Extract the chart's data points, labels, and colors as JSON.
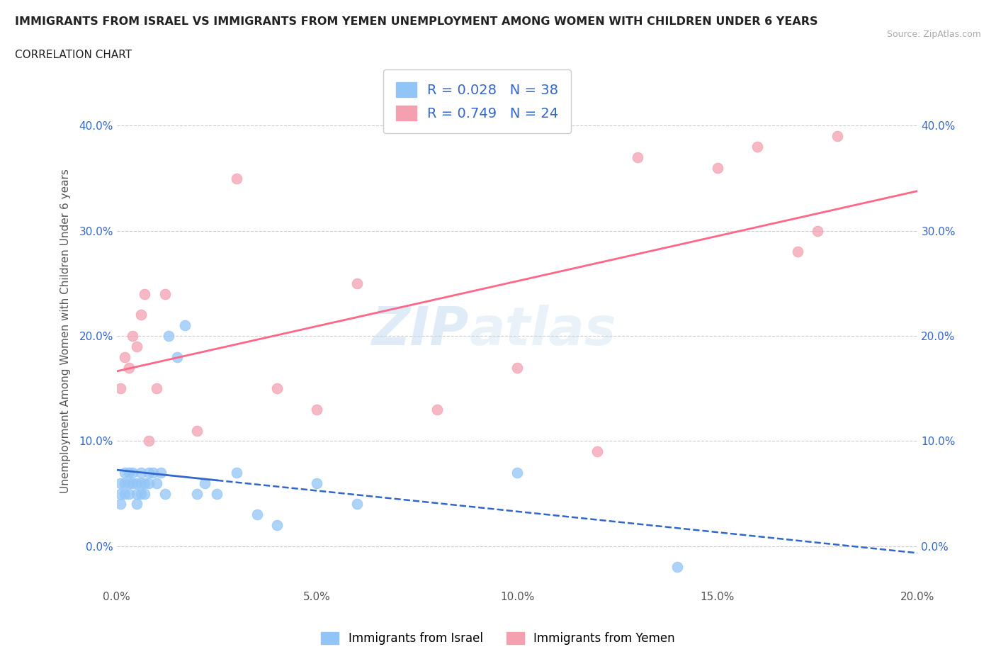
{
  "title": "IMMIGRANTS FROM ISRAEL VS IMMIGRANTS FROM YEMEN UNEMPLOYMENT AMONG WOMEN WITH CHILDREN UNDER 6 YEARS",
  "subtitle": "CORRELATION CHART",
  "source": "Source: ZipAtlas.com",
  "ylabel": "Unemployment Among Women with Children Under 6 years",
  "legend_bottom": [
    "Immigrants from Israel",
    "Immigrants from Yemen"
  ],
  "r_israel": 0.028,
  "n_israel": 38,
  "r_yemen": 0.749,
  "n_yemen": 24,
  "israel_color": "#92C5F7",
  "yemen_color": "#F4A0B0",
  "israel_line_color": "#3366CC",
  "yemen_line_color": "#FF6688",
  "background_color": "#FFFFFF",
  "watermark_zip": "ZIP",
  "watermark_atlas": "atlas",
  "xlim": [
    0.0,
    0.2
  ],
  "ylim": [
    -0.04,
    0.45
  ],
  "yticks": [
    0.0,
    0.1,
    0.2,
    0.3,
    0.4
  ],
  "xticks": [
    0.0,
    0.05,
    0.1,
    0.15,
    0.2
  ],
  "israel_x": [
    0.001,
    0.001,
    0.001,
    0.002,
    0.002,
    0.002,
    0.003,
    0.003,
    0.003,
    0.004,
    0.004,
    0.005,
    0.005,
    0.005,
    0.006,
    0.006,
    0.006,
    0.007,
    0.007,
    0.008,
    0.008,
    0.009,
    0.01,
    0.011,
    0.012,
    0.013,
    0.015,
    0.017,
    0.02,
    0.022,
    0.025,
    0.03,
    0.035,
    0.04,
    0.05,
    0.06,
    0.1,
    0.14
  ],
  "israel_y": [
    0.05,
    0.04,
    0.06,
    0.05,
    0.07,
    0.06,
    0.06,
    0.07,
    0.05,
    0.06,
    0.07,
    0.05,
    0.06,
    0.04,
    0.05,
    0.06,
    0.07,
    0.05,
    0.06,
    0.06,
    0.07,
    0.07,
    0.06,
    0.07,
    0.05,
    0.2,
    0.18,
    0.21,
    0.05,
    0.06,
    0.05,
    0.07,
    0.03,
    0.02,
    0.06,
    0.04,
    0.07,
    -0.02
  ],
  "yemen_x": [
    0.001,
    0.002,
    0.003,
    0.004,
    0.005,
    0.006,
    0.007,
    0.008,
    0.01,
    0.012,
    0.02,
    0.03,
    0.04,
    0.05,
    0.06,
    0.08,
    0.1,
    0.12,
    0.13,
    0.15,
    0.16,
    0.17,
    0.175,
    0.18
  ],
  "yemen_y": [
    0.15,
    0.18,
    0.17,
    0.2,
    0.19,
    0.22,
    0.24,
    0.1,
    0.15,
    0.24,
    0.11,
    0.35,
    0.15,
    0.13,
    0.25,
    0.13,
    0.17,
    0.09,
    0.37,
    0.36,
    0.38,
    0.28,
    0.3,
    0.39
  ]
}
